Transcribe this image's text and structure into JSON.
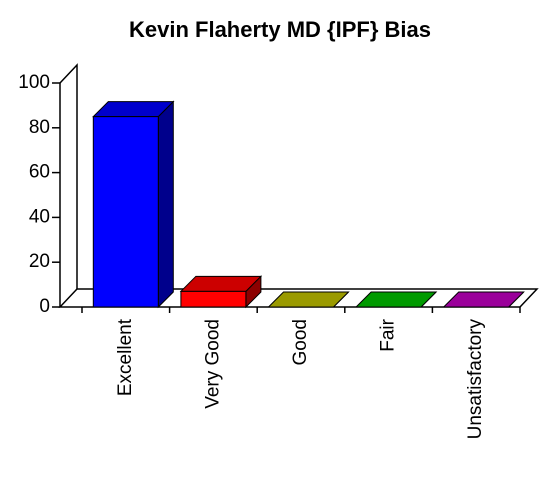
{
  "chart_data": {
    "type": "bar3d",
    "title": "Kevin Flaherty MD {IPF} Bias",
    "categories": [
      "Excellent",
      "Very Good",
      "Good",
      "Fair",
      "Unsatisfactory"
    ],
    "values": [
      85,
      7,
      0,
      0,
      0
    ],
    "colors": [
      "#0000ff",
      "#ff0000",
      "#c0c000",
      "#00c000",
      "#c000c0"
    ],
    "ylim": [
      0,
      100
    ],
    "yticks": [
      0,
      20,
      40,
      60,
      80,
      100
    ]
  }
}
